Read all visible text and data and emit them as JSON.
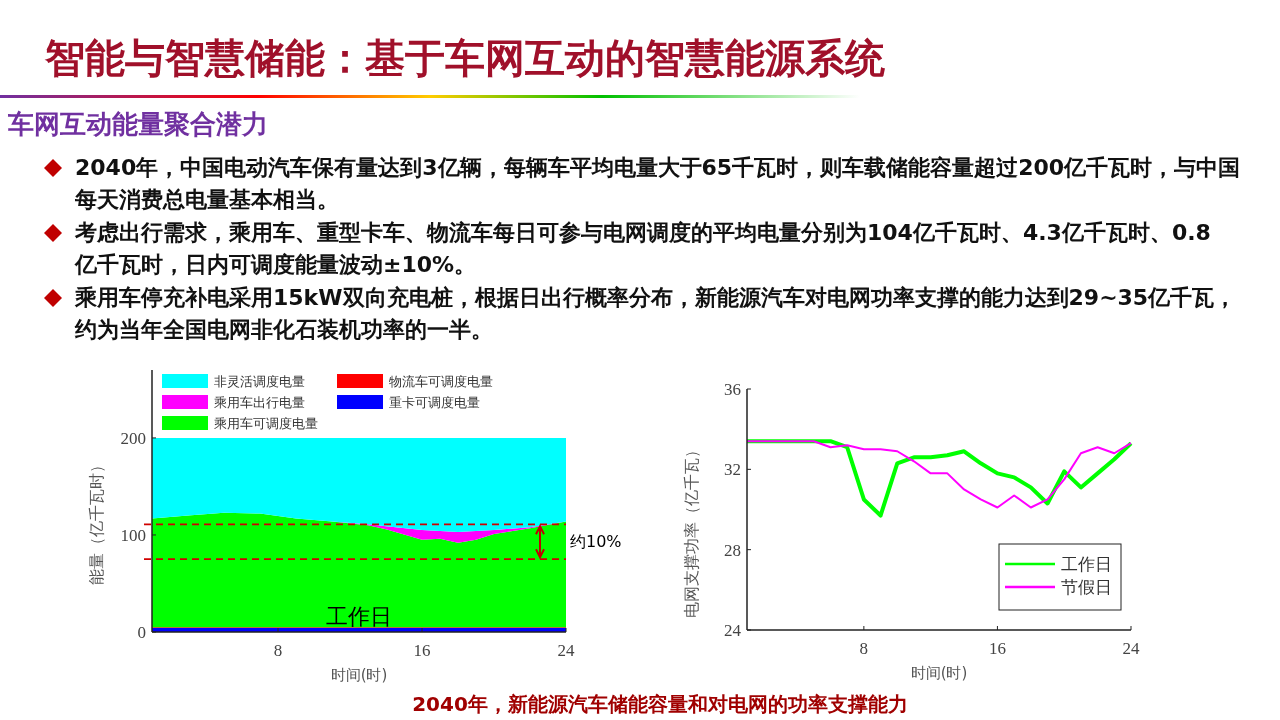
{
  "chart_data": [
    {
      "type": "area",
      "stacked": true,
      "title": "智能与智慧储能：基于车网互动的智慧能源系统",
      "subtitle": "车网互动能量聚合潜力",
      "xlabel": "时间(时)",
      "ylabel": "能量（亿千瓦时）",
      "x": [
        1,
        3,
        5,
        7,
        9,
        11,
        13,
        14,
        16,
        17,
        18,
        19,
        20,
        22,
        24
      ],
      "xlim": [
        1,
        24
      ],
      "xticks": [
        8,
        16,
        24
      ],
      "ylim": [
        0,
        270
      ],
      "yticks": [
        0,
        100,
        200
      ],
      "legend": "top left",
      "series": [
        {
          "name": "重卡可调度电量",
          "color": "#0000ff",
          "values": [
            4,
            4,
            4,
            4,
            4,
            4,
            4,
            4,
            4,
            4,
            4,
            4,
            4,
            4,
            4
          ]
        },
        {
          "name": "物流车可调度电量",
          "color": "#ff0000",
          "values": [
            1,
            1,
            1,
            1,
            1,
            1,
            1,
            1,
            1,
            1,
            1,
            1,
            1,
            1,
            1
          ]
        },
        {
          "name": "乘用车可调度电量",
          "color": "#00ff00",
          "values": [
            112,
            115,
            118,
            117,
            112,
            109,
            105,
            101,
            90,
            91,
            87,
            90,
            96,
            102,
            109
          ]
        },
        {
          "name": "乘用车出行电量",
          "color": "#ff00ff",
          "values": [
            0,
            0,
            0,
            0,
            0,
            0,
            1,
            3,
            10,
            8,
            11,
            9,
            4,
            1,
            0
          ]
        },
        {
          "name": "非灵活调度电量",
          "color": "#00ffff",
          "values": [
            83,
            80,
            77,
            78,
            83,
            86,
            89,
            91,
            95,
            96,
            97,
            96,
            95,
            92,
            86
          ]
        }
      ],
      "ref_lines": [
        {
          "axis": "y",
          "value": 111,
          "color": "#d00000",
          "line_style": "dashed"
        },
        {
          "axis": "y",
          "value": 75,
          "color": "#d00000",
          "line_style": "dashed"
        }
      ],
      "annotations": [
        "2040年，中国电动汽车保有量达到3亿辆，每辆车平均电量大于65千瓦时，则车载储能容量超过200亿千瓦时，与中国每天消费总电量基本相当。",
        "考虑出行需求，乘用车、重型卡车、物流车每日可参与电网调度的平均电量分别为104亿千瓦时、4.3亿千瓦时、0.8亿千瓦时，日内可调度能量波动±10%。",
        "乘用车停充补电采用15kW双向充电桩，根据日出行概率分布，新能源汽车对电网功率支撑的能力达到29~35亿千瓦，约为当年全国电网非化石装机功率的一半。",
        "工作日",
        "约10%"
      ]
    },
    {
      "type": "line",
      "xlabel": "时间(时)",
      "ylabel": "电网支撑功率（亿千瓦）",
      "x": [
        1,
        2,
        3,
        4,
        5,
        6,
        7,
        8,
        9,
        10,
        11,
        12,
        13,
        14,
        15,
        16,
        17,
        18,
        19,
        20,
        21,
        22,
        23,
        24
      ],
      "xlim": [
        1,
        24
      ],
      "xticks": [
        8,
        16,
        24
      ],
      "ylim": [
        24,
        36
      ],
      "yticks": [
        24,
        28,
        32,
        36
      ],
      "legend": "bottom right",
      "marker": "none",
      "line_style": "solid",
      "series": [
        {
          "name": "工作日",
          "color": "#00ff00",
          "values": [
            33.4,
            33.4,
            33.4,
            33.4,
            33.4,
            33.4,
            33.1,
            30.5,
            29.7,
            32.3,
            32.6,
            32.6,
            32.7,
            32.9,
            32.3,
            31.8,
            31.6,
            31.1,
            30.3,
            31.9,
            31.1,
            31.8,
            32.5,
            33.3
          ]
        },
        {
          "name": "节假日",
          "color": "#ff00ff",
          "values": [
            33.4,
            33.4,
            33.4,
            33.4,
            33.4,
            33.1,
            33.2,
            33.0,
            33.0,
            32.9,
            32.4,
            31.8,
            31.8,
            31.0,
            30.5,
            30.1,
            30.7,
            30.1,
            30.5,
            31.5,
            32.8,
            33.1,
            32.8,
            33.3
          ]
        }
      ],
      "annotations": [
        "2040年，新能源汽车储能容量和对电网的功率支撑能力"
      ]
    }
  ]
}
